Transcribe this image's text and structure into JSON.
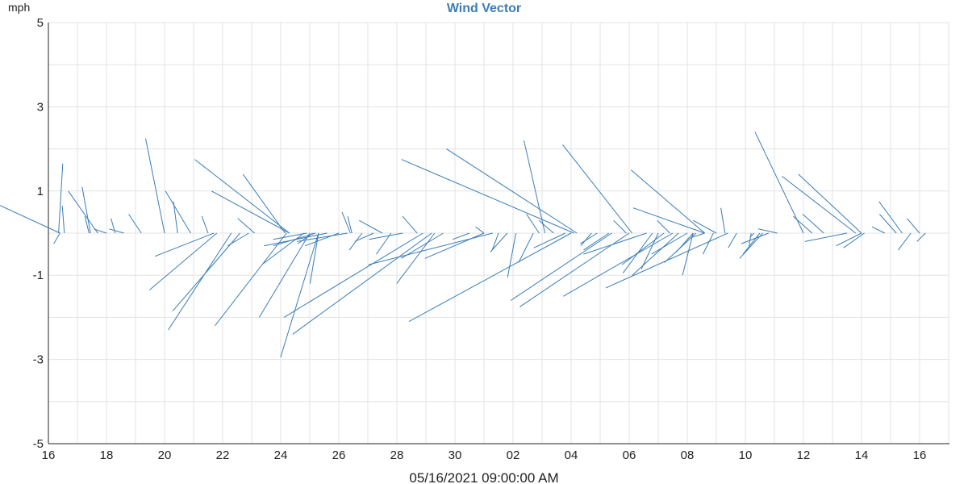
{
  "chart_data": {
    "type": "vector",
    "title": "Wind Vector",
    "ylabel": "mph",
    "xlabel": "05/16/2021 09:00:00 AM",
    "ylim": [
      -5,
      5
    ],
    "yticks": [
      "5",
      "3",
      "1",
      "-1",
      "-3",
      "-5"
    ],
    "yticks_values": [
      5,
      3,
      1,
      -1,
      -3,
      -5
    ],
    "xlim_days": [
      0,
      30.5
    ],
    "xticks": [
      "16",
      "18",
      "20",
      "22",
      "24",
      "26",
      "28",
      "30",
      "02",
      "04",
      "06",
      "08",
      "10",
      "12",
      "14",
      "16"
    ],
    "grid": true,
    "colors": {
      "series": "#3a7db8",
      "title": "#3a7db8",
      "grid": "#e3e3e3"
    },
    "series": [
      {
        "unit": "mph",
        "vectors": [
          {
            "t": 0.35,
            "u": -0.1,
            "v": 1.65
          },
          {
            "t": 0.4,
            "u": 0.15,
            "v": -0.25
          },
          {
            "t": 0.55,
            "u": 0.05,
            "v": 0.65
          },
          {
            "t": 0.4,
            "u": 1.95,
            "v": 0.9
          },
          {
            "t": 1.4,
            "u": 0.1,
            "v": 0.4
          },
          {
            "t": 1.45,
            "u": 0.2,
            "v": 1.1
          },
          {
            "t": 1.7,
            "u": 0.7,
            "v": 1.0
          },
          {
            "t": 2.0,
            "u": 0.3,
            "v": 0.1
          },
          {
            "t": 2.3,
            "u": 0.1,
            "v": 0.35
          },
          {
            "t": 2.6,
            "u": 0.35,
            "v": 0.1
          },
          {
            "t": 3.2,
            "u": 0.3,
            "v": 0.45
          },
          {
            "t": 4.0,
            "u": 0.45,
            "v": 2.25
          },
          {
            "t": 4.45,
            "u": 0.1,
            "v": 0.75
          },
          {
            "t": 4.9,
            "u": 0.6,
            "v": 1.0
          },
          {
            "t": 5.5,
            "u": 0.15,
            "v": 0.4
          },
          {
            "t": 5.7,
            "u": 1.4,
            "v": -0.55
          },
          {
            "t": 5.8,
            "u": 1.6,
            "v": -1.35
          },
          {
            "t": 6.3,
            "u": 1.5,
            "v": -2.3
          },
          {
            "t": 6.6,
            "u": 1.6,
            "v": -1.85
          },
          {
            "t": 6.9,
            "u": 0.5,
            "v": -0.3
          },
          {
            "t": 7.1,
            "u": 0.4,
            "v": 0.35
          },
          {
            "t": 8.2,
            "u": 1.7,
            "v": -2.2
          },
          {
            "t": 8.15,
            "u": 1.0,
            "v": 1.4
          },
          {
            "t": 8.3,
            "u": 1.85,
            "v": 1.0
          },
          {
            "t": 8.3,
            "u": 2.25,
            "v": 1.75
          },
          {
            "t": 8.8,
            "u": 1.0,
            "v": -0.75
          },
          {
            "t": 8.9,
            "u": 0.8,
            "v": -0.15
          },
          {
            "t": 9.1,
            "u": 0.35,
            "v": -0.25
          },
          {
            "t": 9.0,
            "u": 1.2,
            "v": -2.0
          },
          {
            "t": 9.2,
            "u": 1.0,
            "v": -0.3
          },
          {
            "t": 9.3,
            "u": 0.2,
            "v": -1.2
          },
          {
            "t": 9.3,
            "u": 0.9,
            "v": -2.95
          },
          {
            "t": 9.6,
            "u": 1.5,
            "v": -0.3
          },
          {
            "t": 10.0,
            "u": 0.8,
            "v": -0.3
          },
          {
            "t": 10.4,
            "u": 0.2,
            "v": 0.5
          },
          {
            "t": 10.45,
            "u": 0.1,
            "v": 0.4
          },
          {
            "t": 10.3,
            "u": 1.2,
            "v": -0.2
          },
          {
            "t": 10.8,
            "u": 0.3,
            "v": -0.4
          },
          {
            "t": 11.2,
            "u": 0.45,
            "v": -0.2
          },
          {
            "t": 11.5,
            "u": 0.55,
            "v": 0.3
          },
          {
            "t": 11.8,
            "u": 0.35,
            "v": -0.5
          },
          {
            "t": 12.2,
            "u": 0.8,
            "v": -0.15
          },
          {
            "t": 12.7,
            "u": 0.35,
            "v": 0.4
          },
          {
            "t": 12.9,
            "u": 3.3,
            "v": -2.0
          },
          {
            "t": 13.2,
            "u": 3.3,
            "v": -2.4
          },
          {
            "t": 13.3,
            "u": 0.9,
            "v": -1.2
          },
          {
            "t": 13.6,
            "u": 1.0,
            "v": -0.6
          },
          {
            "t": 14.5,
            "u": 0.4,
            "v": -0.15
          },
          {
            "t": 15.0,
            "u": 0.2,
            "v": 0.15
          },
          {
            "t": 15.0,
            "u": 1.4,
            "v": -0.6
          },
          {
            "t": 15.3,
            "u": 2.95,
            "v": -0.75
          },
          {
            "t": 15.5,
            "u": 0.15,
            "v": -0.4
          },
          {
            "t": 15.8,
            "u": 0.4,
            "v": -0.45
          },
          {
            "t": 16.1,
            "u": 0.2,
            "v": -1.05
          },
          {
            "t": 16.7,
            "u": 0.35,
            "v": -0.7
          },
          {
            "t": 16.9,
            "u": 0.3,
            "v": 0.45
          },
          {
            "t": 17.1,
            "u": 0.5,
            "v": 2.2
          },
          {
            "t": 17.4,
            "u": 0.35,
            "v": 0.3
          },
          {
            "t": 17.8,
            "u": 0.75,
            "v": -0.35
          },
          {
            "t": 18.1,
            "u": 4.1,
            "v": 1.75
          },
          {
            "t": 18.2,
            "u": 3.1,
            "v": 2.0
          },
          {
            "t": 18.0,
            "u": 3.85,
            "v": -2.1
          },
          {
            "t": 18.7,
            "u": 0.25,
            "v": -0.3
          },
          {
            "t": 18.9,
            "u": 0.4,
            "v": -0.25
          },
          {
            "t": 19.3,
            "u": 0.6,
            "v": -0.4
          },
          {
            "t": 19.4,
            "u": 2.4,
            "v": -1.6
          },
          {
            "t": 19.9,
            "u": 0.3,
            "v": 0.3
          },
          {
            "t": 20.0,
            "u": 2.6,
            "v": -1.75
          },
          {
            "t": 20.1,
            "u": 1.65,
            "v": 2.1
          },
          {
            "t": 20.6,
            "u": 1.5,
            "v": -0.5
          },
          {
            "t": 20.8,
            "u": 0.7,
            "v": -0.95
          },
          {
            "t": 21.0,
            "u": 0.4,
            "v": -0.85
          },
          {
            "t": 21.2,
            "u": 1.0,
            "v": -0.75
          },
          {
            "t": 21.4,
            "u": 0.3,
            "v": 0.3
          },
          {
            "t": 21.5,
            "u": 2.6,
            "v": -1.5
          },
          {
            "t": 21.7,
            "u": 1.1,
            "v": -1.0
          },
          {
            "t": 22.0,
            "u": 0.85,
            "v": -0.5
          },
          {
            "t": 22.2,
            "u": 0.25,
            "v": -1.0
          },
          {
            "t": 22.2,
            "u": 0.4,
            "v": -0.45
          },
          {
            "t": 22.3,
            "u": 0.75,
            "v": -0.7
          },
          {
            "t": 22.6,
            "u": 0.3,
            "v": -0.1
          },
          {
            "t": 23.0,
            "u": 0.55,
            "v": 0.3
          },
          {
            "t": 23.3,
            "u": 0.1,
            "v": 0.6
          },
          {
            "t": 23.4,
            "u": 2.9,
            "v": -1.3
          },
          {
            "t": 22.6,
            "u": 1.7,
            "v": 0.6
          },
          {
            "t": 22.9,
            "u": 0.25,
            "v": -0.5
          },
          {
            "t": 23.7,
            "u": 0.2,
            "v": -0.35
          },
          {
            "t": 22.6,
            "u": 1.75,
            "v": 1.5
          },
          {
            "t": 24.2,
            "u": 0.05,
            "v": -0.3
          },
          {
            "t": 24.3,
            "u": 0.1,
            "v": -0.1
          },
          {
            "t": 24.5,
            "u": 0.4,
            "v": -0.5
          },
          {
            "t": 24.6,
            "u": 0.55,
            "v": -0.6
          },
          {
            "t": 24.8,
            "u": 0.65,
            "v": -0.25
          },
          {
            "t": 25.1,
            "u": 0.45,
            "v": 0.1
          },
          {
            "t": 26.0,
            "u": 1.15,
            "v": 2.4
          },
          {
            "t": 26.3,
            "u": 0.45,
            "v": 0.4
          },
          {
            "t": 26.7,
            "u": 0.5,
            "v": 0.45
          },
          {
            "t": 27.5,
            "u": 1.0,
            "v": -0.2
          },
          {
            "t": 28.0,
            "u": 0.6,
            "v": -0.3
          },
          {
            "t": 28.0,
            "u": 1.5,
            "v": 1.4
          },
          {
            "t": 28.1,
            "u": 0.5,
            "v": -0.35
          },
          {
            "t": 27.8,
            "u": 1.75,
            "v": 1.35
          },
          {
            "t": 28.8,
            "u": 0.3,
            "v": 0.15
          },
          {
            "t": 29.2,
            "u": 0.4,
            "v": 0.45
          },
          {
            "t": 29.4,
            "u": 0.55,
            "v": 0.75
          },
          {
            "t": 29.7,
            "u": 0.3,
            "v": -0.4
          },
          {
            "t": 30.0,
            "u": 0.3,
            "v": 0.35
          },
          {
            "t": 30.2,
            "u": 0.2,
            "v": -0.2
          }
        ]
      }
    ]
  }
}
